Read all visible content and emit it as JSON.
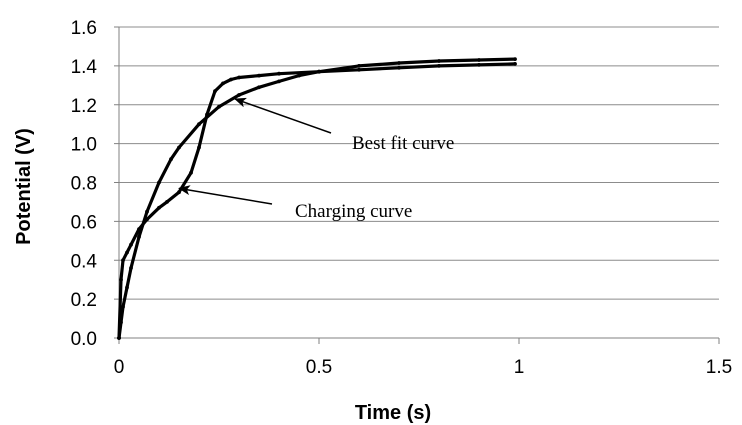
{
  "chart_data": {
    "type": "line",
    "title": "",
    "xlabel": "Time (s)",
    "ylabel": "Potential (V)",
    "xlim": [
      0,
      1.5
    ],
    "ylim": [
      0,
      1.6
    ],
    "x_ticks": [
      "0",
      "0.5",
      "1",
      "1.5"
    ],
    "y_ticks": [
      "0.0",
      "0.2",
      "0.4",
      "0.6",
      "0.8",
      "1.0",
      "1.2",
      "1.4",
      "1.6"
    ],
    "grid": "horizontal",
    "legend": "none",
    "series": [
      {
        "x": [
          0,
          0.005,
          0.01,
          0.02,
          0.03,
          0.05,
          0.07,
          0.1,
          0.12,
          0.15,
          0.18,
          0.2,
          0.22,
          0.24,
          0.26,
          0.28,
          0.3,
          0.35,
          0.4,
          0.5,
          0.6,
          0.7,
          0.8,
          0.9,
          0.99
        ],
        "y": [
          0.0,
          0.3,
          0.4,
          0.44,
          0.48,
          0.56,
          0.61,
          0.67,
          0.7,
          0.75,
          0.85,
          0.98,
          1.15,
          1.27,
          1.31,
          1.33,
          1.34,
          1.35,
          1.36,
          1.37,
          1.38,
          1.39,
          1.4,
          1.405,
          1.41
        ]
      },
      {
        "x": [
          0,
          0.005,
          0.01,
          0.02,
          0.03,
          0.05,
          0.07,
          0.1,
          0.13,
          0.15,
          0.2,
          0.25,
          0.3,
          0.35,
          0.4,
          0.45,
          0.5,
          0.6,
          0.7,
          0.8,
          0.9,
          0.99
        ],
        "y": [
          0.0,
          0.08,
          0.16,
          0.26,
          0.36,
          0.52,
          0.65,
          0.8,
          0.92,
          0.98,
          1.1,
          1.19,
          1.25,
          1.29,
          1.32,
          1.35,
          1.37,
          1.4,
          1.415,
          1.425,
          1.43,
          1.435
        ]
      }
    ],
    "annotations": [
      {
        "text": "Best fit curve",
        "x": 0.29,
        "y": 1.23
      },
      {
        "text": "Charging curve",
        "x": 0.15,
        "y": 0.77
      }
    ]
  }
}
